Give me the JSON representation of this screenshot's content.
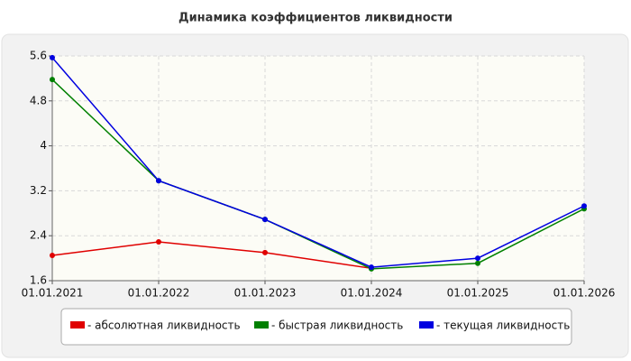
{
  "chart_data": {
    "type": "line",
    "title": "Динамика коэффициентов ликвидности",
    "categories": [
      "01.01.2021",
      "01.01.2022",
      "01.01.2023",
      "01.01.2024",
      "01.01.2025",
      "01.01.2026"
    ],
    "series": [
      {
        "name": "- абсолютная ликвидность",
        "color": "#e00000",
        "values": [
          2.05,
          2.29,
          2.1,
          1.82,
          null,
          null
        ]
      },
      {
        "name": "- быстрая ликвидность",
        "color": "#008000",
        "values": [
          5.18,
          3.38,
          2.69,
          1.81,
          1.91,
          2.88
        ]
      },
      {
        "name": "- текущая ликвидность",
        "color": "#0000e0",
        "values": [
          5.57,
          3.38,
          2.69,
          1.84,
          2.0,
          2.93
        ]
      }
    ],
    "ylim": [
      1.6,
      5.6
    ],
    "yticks": [
      1.6,
      2.4,
      3.2,
      4,
      4.8,
      5.6
    ],
    "grid": true
  }
}
